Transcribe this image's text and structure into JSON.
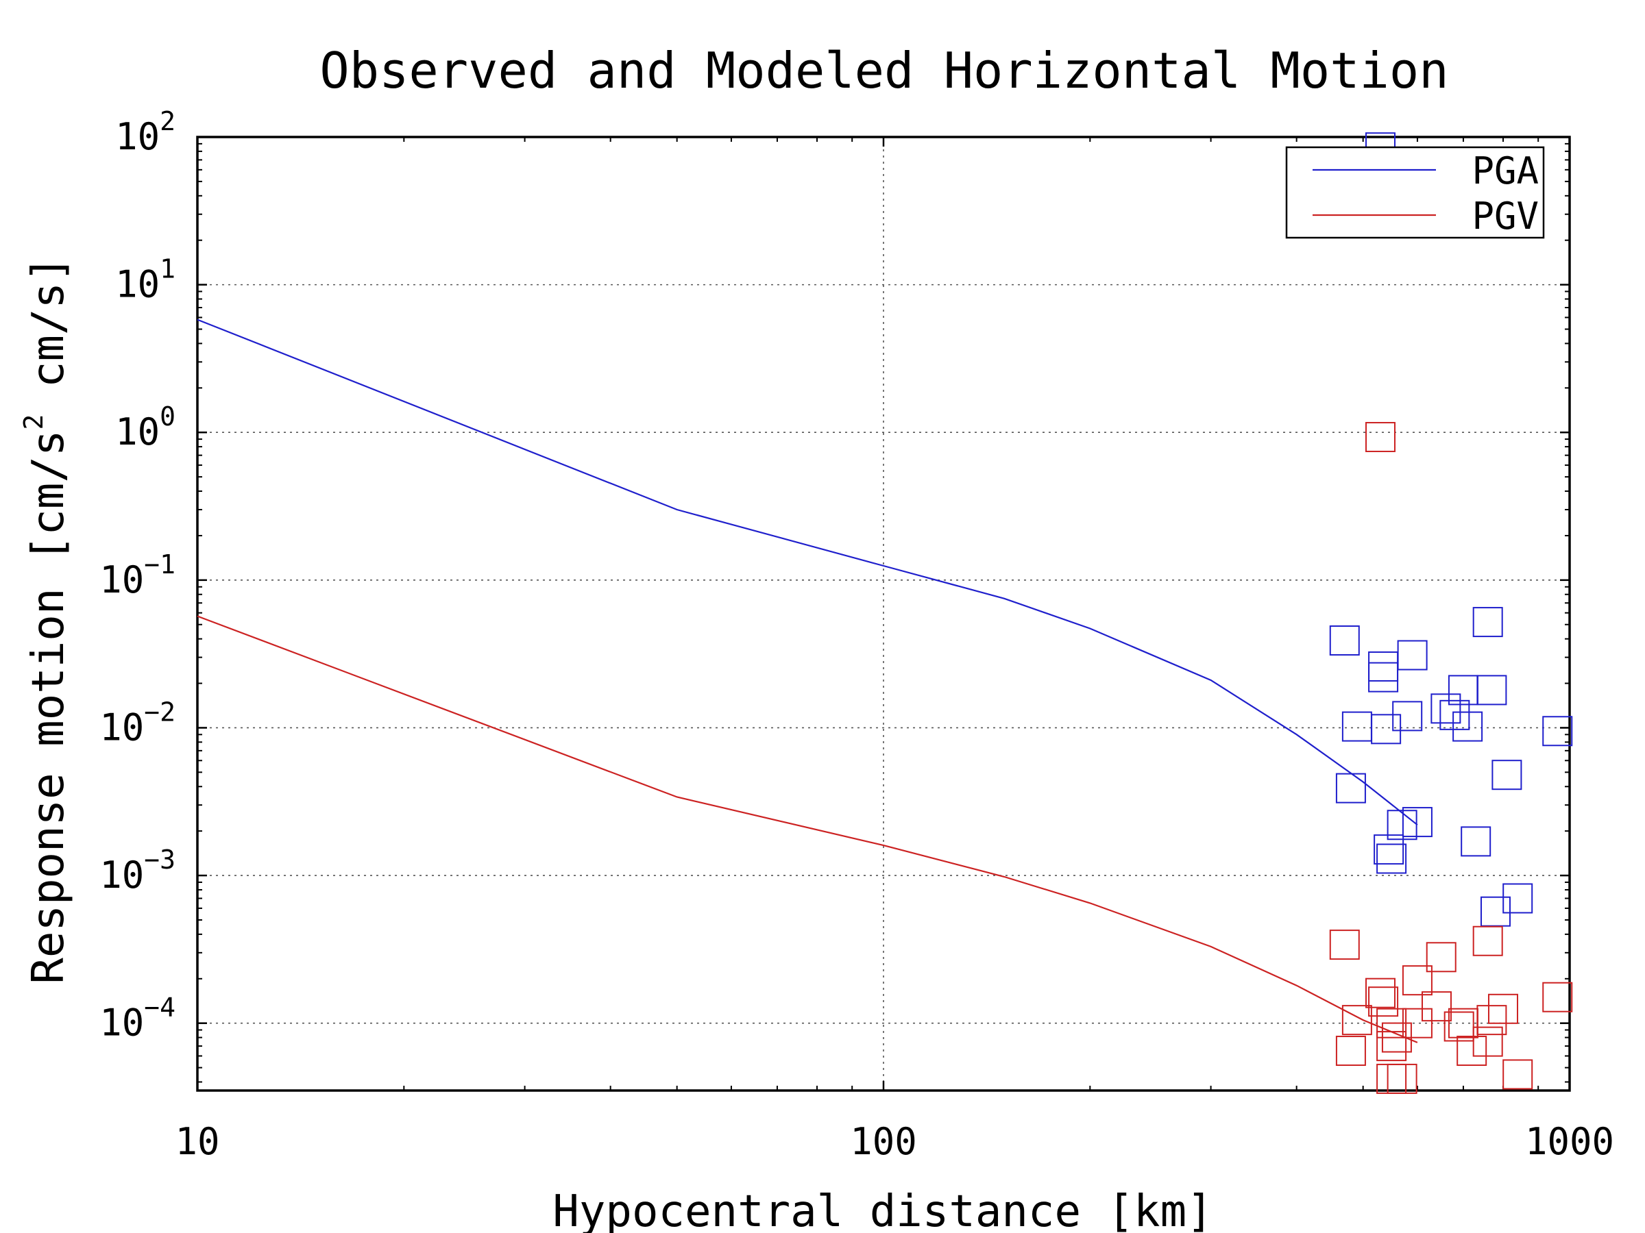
{
  "chart_data": {
    "type": "scatter",
    "title": "Observed and Modeled Horizontal Motion",
    "xlabel": "Hypocentral distance [km]",
    "ylabel": {
      "main": "Response motion ",
      "unit_open": "[cm/s",
      "unit_sup": "2",
      "unit_close": "  cm/s]"
    },
    "x_scale": "log",
    "y_scale": "log",
    "xlim": [
      10,
      1000
    ],
    "ylim": [
      3.5e-05,
      100
    ],
    "x_ticks": [
      {
        "value": 10,
        "label": "10"
      },
      {
        "value": 100,
        "label": "100"
      },
      {
        "value": 1000,
        "label": "1000"
      }
    ],
    "y_ticks": [
      {
        "value": 100,
        "base": "10",
        "exp": "2"
      },
      {
        "value": 10,
        "base": "10",
        "exp": "1"
      },
      {
        "value": 1,
        "base": "10",
        "exp": "0"
      },
      {
        "value": 0.1,
        "base": "10",
        "exp": "−1"
      },
      {
        "value": 0.01,
        "base": "10",
        "exp": "−2"
      },
      {
        "value": 0.001,
        "base": "10",
        "exp": "−3"
      },
      {
        "value": 0.0001,
        "base": "10",
        "exp": "−4"
      }
    ],
    "grid": true,
    "legend_position": "top-right",
    "series": [
      {
        "name": "PGA",
        "color": "#1f1fcc",
        "model_line": [
          [
            10,
            5.8
          ],
          [
            50,
            0.3
          ],
          [
            100,
            0.125
          ],
          [
            150,
            0.075
          ],
          [
            200,
            0.047
          ],
          [
            300,
            0.021
          ],
          [
            400,
            0.009
          ],
          [
            500,
            0.0043
          ],
          [
            600,
            0.0022
          ]
        ],
        "observed": [
          [
            530,
            85
          ],
          [
            470,
            0.039
          ],
          [
            760,
            0.052
          ],
          [
            535,
            0.026
          ],
          [
            535,
            0.022
          ],
          [
            590,
            0.031
          ],
          [
            700,
            0.018
          ],
          [
            770,
            0.018
          ],
          [
            490,
            0.0102
          ],
          [
            540,
            0.0098
          ],
          [
            580,
            0.012
          ],
          [
            660,
            0.0135
          ],
          [
            680,
            0.0122
          ],
          [
            710,
            0.0102
          ],
          [
            960,
            0.0095
          ],
          [
            810,
            0.0048
          ],
          [
            480,
            0.0039
          ],
          [
            570,
            0.0022
          ],
          [
            600,
            0.0023
          ],
          [
            730,
            0.0017
          ],
          [
            545,
            0.0015
          ],
          [
            550,
            0.0013
          ],
          [
            780,
            0.00057
          ],
          [
            840,
            0.0007
          ]
        ]
      },
      {
        "name": "PGV",
        "color": "#cc2222",
        "model_line": [
          [
            10,
            0.057
          ],
          [
            50,
            0.0034
          ],
          [
            100,
            0.0016
          ],
          [
            150,
            0.00098
          ],
          [
            200,
            0.00065
          ],
          [
            300,
            0.00033
          ],
          [
            400,
            0.00018
          ],
          [
            500,
            0.000105
          ],
          [
            600,
            7.4e-05
          ]
        ],
        "observed": [
          [
            530,
            0.93
          ],
          [
            470,
            0.00034
          ],
          [
            760,
            0.00036
          ],
          [
            650,
            0.00028
          ],
          [
            600,
            0.000195
          ],
          [
            530,
            0.00016
          ],
          [
            535,
            0.00014
          ],
          [
            640,
            0.00013
          ],
          [
            960,
            0.00015
          ],
          [
            800,
            0.000125
          ],
          [
            490,
            0.000105
          ],
          [
            550,
            0.0001
          ],
          [
            600,
            0.0001
          ],
          [
            700,
            0.0001
          ],
          [
            770,
            0.000105
          ],
          [
            690,
            9.5e-05
          ],
          [
            560,
            8e-05
          ],
          [
            550,
            7e-05
          ],
          [
            720,
            6.5e-05
          ],
          [
            760,
            7.5e-05
          ],
          [
            480,
            6.5e-05
          ],
          [
            840,
            4.5e-05
          ],
          [
            550,
            4.2e-05
          ],
          [
            570,
            4.2e-05
          ]
        ]
      }
    ]
  }
}
